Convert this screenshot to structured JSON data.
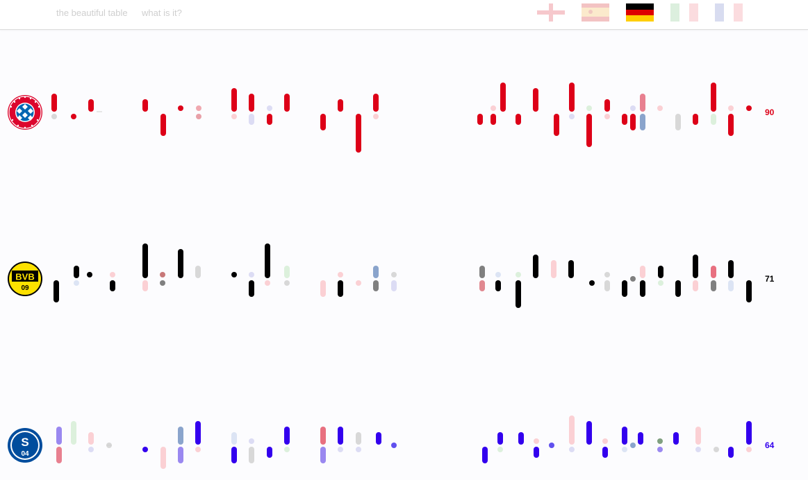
{
  "nav": {
    "title": "the beautiful table",
    "about": "what is it?"
  },
  "leagues": [
    {
      "icon": "england-flag-icon",
      "active": false
    },
    {
      "icon": "spain-flag-icon",
      "active": false
    },
    {
      "icon": "germany-flag-icon",
      "active": true
    },
    {
      "icon": "italy-flag-icon",
      "active": false
    },
    {
      "icon": "france-flag-icon",
      "active": false
    }
  ],
  "teams": [
    {
      "name": "FC Bayern München",
      "logo": "bayern-logo-icon",
      "points": "90",
      "color": "#dd0018"
    },
    {
      "name": "Borussia Dortmund",
      "logo": "dortmund-logo-icon",
      "points": "71",
      "color": "#000000"
    },
    {
      "name": "FC Schalke 04",
      "logo": "schalke-logo-icon",
      "points": "64",
      "color": "#3300ee"
    }
  ]
}
